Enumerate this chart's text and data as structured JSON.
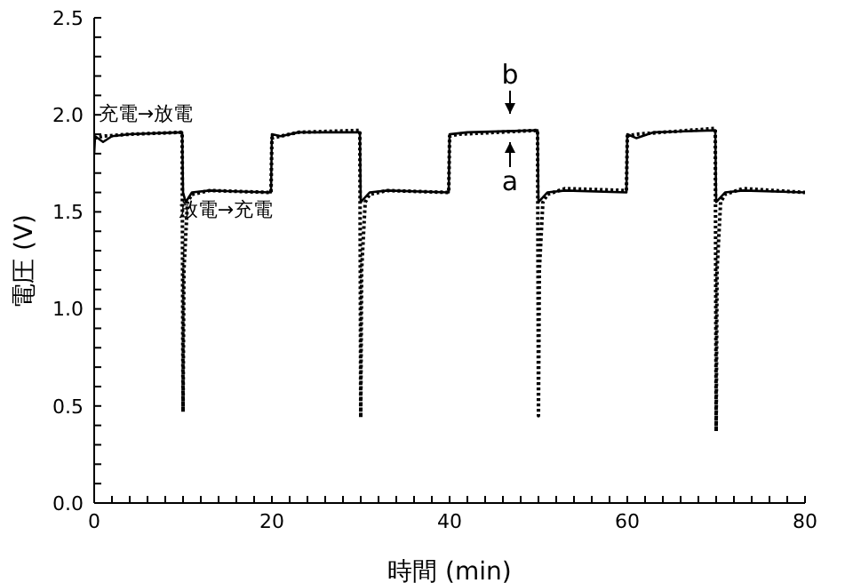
{
  "chart_data": {
    "type": "line",
    "xlabel": "時間 (min)",
    "ylabel": "電圧 (V)",
    "marker": "none",
    "xlim": [
      0,
      80
    ],
    "xticks": [
      0,
      {
        "value": 2,
        "label": null
      },
      {
        "value": 4,
        "label": null
      },
      {
        "value": 6,
        "label": null
      },
      {
        "value": 8,
        "label": null
      },
      {
        "value": 10,
        "label": null
      },
      {
        "value": 12,
        "label": null
      },
      {
        "value": 14,
        "label": null
      },
      {
        "value": 16,
        "label": null
      },
      {
        "value": 18,
        "label": null
      },
      20,
      {
        "value": 22,
        "label": null
      },
      {
        "value": 24,
        "label": null
      },
      {
        "value": 26,
        "label": null
      },
      {
        "value": 28,
        "label": null
      },
      {
        "value": 30,
        "label": null
      },
      {
        "value": 32,
        "label": null
      },
      {
        "value": 34,
        "label": null
      },
      {
        "value": 36,
        "label": null
      },
      {
        "value": 38,
        "label": null
      },
      40,
      {
        "value": 42,
        "label": null
      },
      {
        "value": 44,
        "label": null
      },
      {
        "value": 46,
        "label": null
      },
      {
        "value": 48,
        "label": null
      },
      {
        "value": 50,
        "label": null
      },
      {
        "value": 52,
        "label": null
      },
      {
        "value": 54,
        "label": null
      },
      {
        "value": 56,
        "label": null
      },
      {
        "value": 58,
        "label": null
      },
      60,
      {
        "value": 62,
        "label": null
      },
      {
        "value": 64,
        "label": null
      },
      {
        "value": 66,
        "label": null
      },
      {
        "value": 68,
        "label": null
      },
      {
        "value": 70,
        "label": null
      },
      {
        "value": 72,
        "label": null
      },
      {
        "value": 74,
        "label": null
      },
      {
        "value": 76,
        "label": null
      },
      {
        "value": 78,
        "label": null
      },
      80
    ],
    "ylim": [
      0,
      2.5
    ],
    "yticks": [
      {
        "value": 0,
        "label": "0.0"
      },
      {
        "value": 0.1,
        "label": null
      },
      {
        "value": 0.2,
        "label": null
      },
      {
        "value": 0.3,
        "label": null
      },
      {
        "value": 0.4,
        "label": null
      },
      0.5,
      {
        "value": 0.6,
        "label": null
      },
      {
        "value": 0.7,
        "label": null
      },
      {
        "value": 0.8,
        "label": null
      },
      {
        "value": 0.9,
        "label": null
      },
      {
        "value": 1,
        "label": "1.0"
      },
      {
        "value": 1.1,
        "label": null
      },
      {
        "value": 1.2,
        "label": null
      },
      {
        "value": 1.3,
        "label": null
      },
      {
        "value": 1.4,
        "label": null
      },
      1.5,
      {
        "value": 1.6,
        "label": null
      },
      {
        "value": 1.7,
        "label": null
      },
      {
        "value": 1.8,
        "label": null
      },
      {
        "value": 1.9,
        "label": null
      },
      {
        "value": 2,
        "label": "2.0"
      },
      {
        "value": 2.1,
        "label": null
      },
      {
        "value": 2.2,
        "label": null
      },
      {
        "value": 2.3,
        "label": null
      },
      {
        "value": 2.4,
        "label": null
      },
      2.5
    ],
    "series": [
      {
        "color": "#000000",
        "line_style": "solid",
        "x": [
          0,
          0.1,
          1,
          2,
          4,
          9.9,
          10,
          10.3,
          11,
          13,
          19.9,
          20,
          21,
          23,
          29.9,
          30,
          31,
          33,
          39.9,
          40,
          42,
          49.9,
          50,
          51,
          53,
          59.9,
          60,
          61,
          63,
          69.9,
          70,
          71,
          73,
          80
        ],
        "values": [
          1.8,
          1.89,
          1.86,
          1.89,
          1.9,
          1.91,
          1.6,
          1.55,
          1.6,
          1.61,
          1.6,
          1.9,
          1.89,
          1.91,
          1.91,
          1.55,
          1.6,
          1.61,
          1.6,
          1.9,
          1.91,
          1.92,
          1.55,
          1.6,
          1.61,
          1.6,
          1.9,
          1.88,
          1.91,
          1.92,
          1.55,
          1.6,
          1.61,
          1.6
        ]
      },
      {
        "color": "#000000",
        "line_style": "dotted",
        "x": [
          0,
          1,
          4,
          9.9,
          10,
          10.1,
          10.5,
          11,
          13,
          19.9,
          20,
          21,
          23,
          29.9,
          30,
          30.1,
          30.5,
          31,
          33,
          39.9,
          40,
          41,
          49.9,
          50,
          50.1,
          50.5,
          51,
          53,
          59.9,
          60,
          61,
          69.9,
          70,
          70.1,
          70.5,
          71,
          73,
          80
        ],
        "values": [
          1.88,
          1.89,
          1.9,
          1.91,
          0.47,
          1.2,
          1.55,
          1.59,
          1.61,
          1.6,
          1.88,
          1.89,
          1.91,
          1.92,
          0.44,
          1.2,
          1.55,
          1.59,
          1.61,
          1.6,
          1.89,
          1.9,
          1.92,
          0.45,
          1.2,
          1.55,
          1.59,
          1.62,
          1.61,
          1.89,
          1.9,
          1.93,
          0.37,
          1.2,
          1.55,
          1.59,
          1.62,
          1.6
        ]
      }
    ],
    "annotations": [
      "充電→放電",
      "放電→充電",
      "b",
      "a"
    ]
  }
}
